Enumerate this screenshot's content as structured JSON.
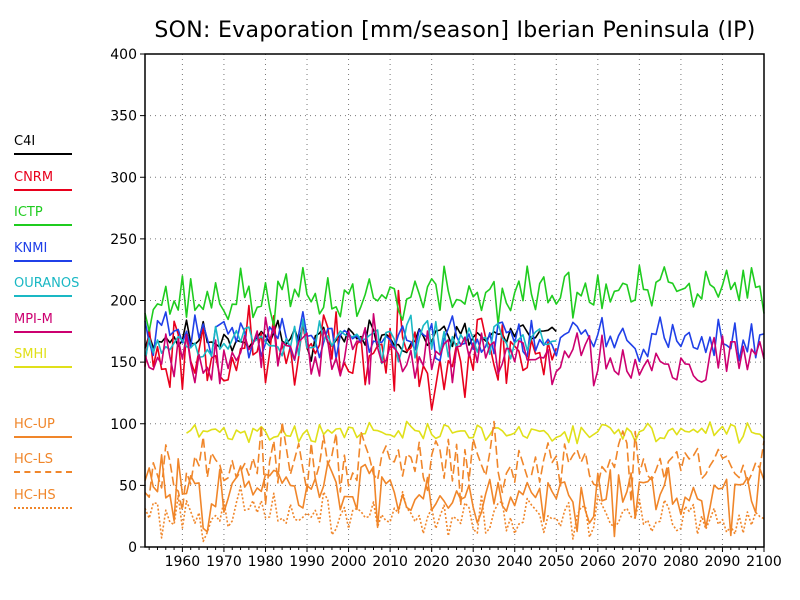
{
  "chart_data": {
    "type": "line",
    "title": "SON: Evaporation [mm/season] Iberian Peninsula (IP)",
    "xlabel": "",
    "ylabel": "",
    "xlim": [
      1951,
      2100
    ],
    "ylim": [
      0,
      400
    ],
    "xticks": [
      "1960",
      "1970",
      "1980",
      "1990",
      "2000",
      "2010",
      "2020",
      "2030",
      "2040",
      "2050",
      "2060",
      "2070",
      "2080",
      "2090",
      "2100"
    ],
    "yticks": [
      "0",
      "50",
      "100",
      "150",
      "200",
      "250",
      "300",
      "350",
      "400"
    ],
    "grid": true,
    "legend_position": "left",
    "series": [
      {
        "name": "C4I",
        "color": "#000000",
        "dash": "solid",
        "start": 1951,
        "end": 2050,
        "mean": 170,
        "spread": 7,
        "trend": 0,
        "seed": 11
      },
      {
        "name": "CNRM",
        "color": "#e8001c",
        "dash": "solid",
        "start": 1951,
        "end": 2050,
        "mean": 158,
        "spread": 18,
        "trend": 0,
        "seed": 23
      },
      {
        "name": "ICTP",
        "color": "#1fcc1f",
        "dash": "solid",
        "start": 1951,
        "end": 2100,
        "mean": 200,
        "spread": 11,
        "trend": 8,
        "seed": 37
      },
      {
        "name": "KNMI",
        "color": "#2040e8",
        "dash": "solid",
        "start": 1951,
        "end": 2100,
        "mean": 172,
        "spread": 9,
        "trend": -4,
        "seed": 41
      },
      {
        "name": "OURANOS",
        "color": "#1ab8c4",
        "dash": "solid",
        "start": 1951,
        "end": 2050,
        "mean": 168,
        "spread": 8,
        "trend": 0,
        "seed": 53
      },
      {
        "name": "MPI-M",
        "color": "#cc0070",
        "dash": "solid",
        "start": 1951,
        "end": 2100,
        "mean": 160,
        "spread": 12,
        "trend": -8,
        "seed": 67
      },
      {
        "name": "SMHI",
        "color": "#e0e01a",
        "dash": "solid",
        "start": 1961,
        "end": 2100,
        "mean": 93,
        "spread": 4,
        "trend": 0,
        "seed": 71
      },
      {
        "name": "HC-UP",
        "color": "#f0862a",
        "dash": "solid",
        "start": 1951,
        "end": 2100,
        "mean": 48,
        "spread": 13,
        "trend": -6,
        "seed": 83
      },
      {
        "name": "HC-LS",
        "color": "#f0862a",
        "dash": "dashed",
        "start": 1951,
        "end": 2100,
        "mean": 68,
        "spread": 13,
        "trend": -5,
        "seed": 97
      },
      {
        "name": "HC-HS",
        "color": "#f0862a",
        "dash": "dotted",
        "start": 1951,
        "end": 2100,
        "mean": 28,
        "spread": 9,
        "trend": -5,
        "seed": 101
      }
    ]
  }
}
